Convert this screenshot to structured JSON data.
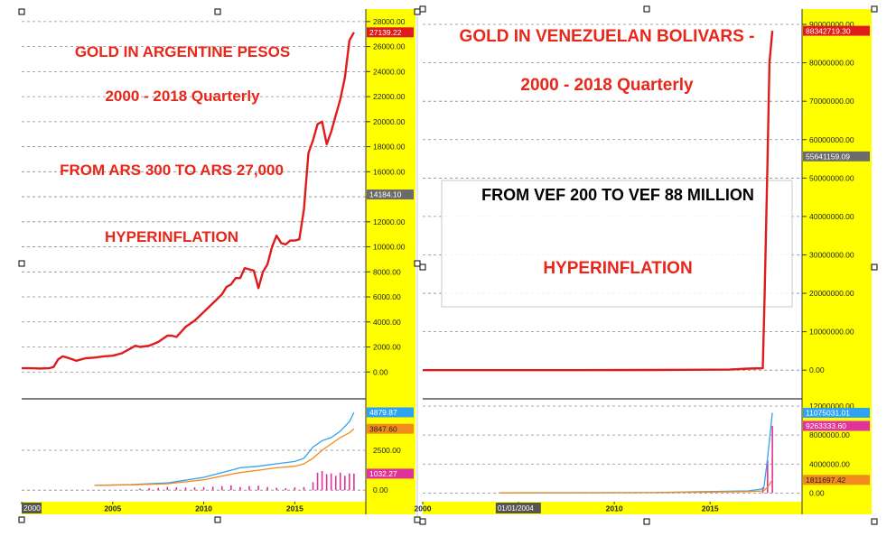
{
  "colors": {
    "axis_bg": "#ffff00",
    "headline": "#e8261a",
    "note": "#000000",
    "price_line": "#e01b1b",
    "blue_line": "#2ea3f2",
    "orange_line": "#f28a1c",
    "volume": "#e0339a",
    "price_tag": "#e01b1b",
    "mid_tag": "#6b6b6b",
    "blue_tag": "#2ea3f2",
    "orange_tag": "#f28a1c",
    "volume_tag": "#e0339a"
  },
  "chart_data": [
    {
      "type": "line",
      "panel": "argentina",
      "annotations": [
        "GOLD IN ARGENTINE PESOS",
        "2000 - 2018 Quarterly",
        "FROM ARS 300 TO ARS 27,000",
        "HYPERINFLATION"
      ],
      "xlim": [
        2000,
        2018.9
      ],
      "ylim": [
        -2000,
        29000
      ],
      "x_ticks": [
        2000,
        2005,
        2010,
        2015
      ],
      "x_tick_labels": [
        "2000",
        "2005",
        "2010",
        "2015"
      ],
      "y_ticks": [
        0,
        2000,
        4000,
        6000,
        8000,
        10000,
        12000,
        14000,
        16000,
        18000,
        20000,
        22000,
        24000,
        26000,
        28000
      ],
      "y_tick_labels": [
        "0.00",
        "2000.00",
        "4000.00",
        "6000.00",
        "8000.00",
        "10000.00",
        "12000.00",
        "14000.00",
        "16000.00",
        "18000.00",
        "20000.00",
        "22000.00",
        "24000.00",
        "26000.00",
        "28000.00"
      ],
      "value_tags": [
        {
          "value": 27139.22,
          "label": "27139.22",
          "role": "price"
        },
        {
          "value": 14184.1,
          "label": "14184.10",
          "role": "mid"
        }
      ],
      "x": [
        2000.0,
        2000.5,
        2001.0,
        2001.5,
        2001.75,
        2002.0,
        2002.25,
        2002.5,
        2003.0,
        2003.5,
        2004.0,
        2004.5,
        2005.0,
        2005.5,
        2006.0,
        2006.25,
        2006.5,
        2007.0,
        2007.5,
        2008.0,
        2008.25,
        2008.5,
        2008.75,
        2009.0,
        2009.5,
        2010.0,
        2010.5,
        2011.0,
        2011.25,
        2011.5,
        2011.75,
        2012.0,
        2012.25,
        2012.5,
        2012.75,
        2013.0,
        2013.25,
        2013.5,
        2013.75,
        2014.0,
        2014.25,
        2014.5,
        2014.75,
        2015.0,
        2015.25,
        2015.5,
        2015.75,
        2016.0,
        2016.25,
        2016.5,
        2016.75,
        2017.0,
        2017.25,
        2017.5,
        2017.75,
        2018.0,
        2018.25
      ],
      "y": [
        300,
        300,
        280,
        300,
        400,
        1000,
        1250,
        1150,
        900,
        1100,
        1150,
        1250,
        1300,
        1500,
        1900,
        2100,
        2000,
        2100,
        2400,
        2900,
        2900,
        2800,
        3200,
        3600,
        4100,
        4800,
        5500,
        6200,
        6800,
        7000,
        7500,
        7500,
        8300,
        8200,
        8100,
        6700,
        8000,
        8600,
        10000,
        10900,
        10300,
        10200,
        10500,
        10500,
        10600,
        13000,
        17500,
        18500,
        19800,
        20000,
        18200,
        19200,
        20500,
        21800,
        23500,
        26500,
        27139
      ],
      "lower": {
        "ylim": [
          -500,
          5500
        ],
        "y_ticks": [
          0,
          2500
        ],
        "y_tick_labels": [
          "0.00",
          "2500.00"
        ],
        "value_tags": [
          {
            "value": 4879.87,
            "label": "4879.87",
            "role": "blue"
          },
          {
            "value": 3847.6,
            "label": "3847.60",
            "role": "orange"
          },
          {
            "value": 1032.27,
            "label": "1032.27",
            "role": "volume"
          }
        ],
        "blue": {
          "x": [
            2004.0,
            2006.0,
            2008.0,
            2010.0,
            2011.5,
            2012.0,
            2013.0,
            2014.0,
            2015.0,
            2015.5,
            2016.0,
            2016.5,
            2017.0,
            2017.5,
            2018.0,
            2018.25
          ],
          "y": [
            300,
            350,
            450,
            800,
            1250,
            1400,
            1500,
            1650,
            1800,
            2000,
            2700,
            3100,
            3300,
            3700,
            4300,
            4879
          ]
        },
        "orange": {
          "x": [
            2004.0,
            2006.0,
            2008.0,
            2010.0,
            2011.5,
            2012.0,
            2013.0,
            2014.0,
            2015.0,
            2015.5,
            2016.0,
            2016.5,
            2017.0,
            2017.5,
            2018.0,
            2018.25
          ],
          "y": [
            300,
            330,
            400,
            650,
            1000,
            1100,
            1250,
            1400,
            1500,
            1650,
            2000,
            2500,
            2900,
            3300,
            3600,
            3847
          ]
        },
        "volume": {
          "x": [
            2006.5,
            2007.0,
            2007.5,
            2008.0,
            2008.5,
            2009.0,
            2009.5,
            2010.0,
            2010.5,
            2011.0,
            2011.5,
            2012.0,
            2012.5,
            2013.0,
            2013.5,
            2014.0,
            2014.5,
            2015.0,
            2015.5,
            2016.0,
            2016.25,
            2016.5,
            2016.75,
            2017.0,
            2017.25,
            2017.5,
            2017.75,
            2018.0,
            2018.25
          ],
          "y": [
            100,
            120,
            150,
            200,
            180,
            170,
            180,
            200,
            220,
            250,
            300,
            200,
            250,
            280,
            200,
            150,
            120,
            180,
            200,
            500,
            1100,
            1200,
            1000,
            1050,
            900,
            1100,
            900,
            1050,
            1032
          ]
        }
      }
    },
    {
      "type": "line",
      "panel": "venezuela",
      "annotations": [
        "GOLD IN VENEZUELAN BOLIVARS -",
        "2000  - 2018  Quarterly",
        "FROM VEF 200 TO VEF 88 MILLION",
        "HYPERINFLATION"
      ],
      "xlim": [
        2000,
        2019.8
      ],
      "ylim": [
        -7000000,
        94000000
      ],
      "x_ticks": [
        2000,
        2005,
        2010,
        2015
      ],
      "x_tick_labels": [
        "2000",
        "2005",
        "2010",
        "2015"
      ],
      "x_cursor_label": "01/01/2004",
      "y_ticks": [
        0,
        10000000,
        20000000,
        30000000,
        40000000,
        50000000,
        60000000,
        70000000,
        80000000,
        90000000
      ],
      "y_tick_labels": [
        "0.00",
        "10000000.00",
        "20000000.00",
        "30000000.00",
        "40000000.00",
        "50000000.00",
        "60000000.00",
        "70000000.00",
        "80000000.00",
        "90000000.00"
      ],
      "value_tags": [
        {
          "value": 88342719.3,
          "label": "88342719.30",
          "role": "price"
        },
        {
          "value": 55641159.09,
          "label": "55641159.09",
          "role": "mid"
        }
      ],
      "x": [
        2000.0,
        2004.0,
        2008.0,
        2012.0,
        2016.0,
        2017.0,
        2017.75,
        2017.85,
        2018.0,
        2018.1,
        2018.25
      ],
      "y": [
        200,
        2000,
        8000,
        40000,
        150000,
        400000,
        500000,
        20000000,
        55000000,
        80000000,
        88342719
      ],
      "lower": {
        "ylim": [
          -700000,
          12500000
        ],
        "y_ticks": [
          0,
          4000000,
          8000000,
          12000000
        ],
        "y_tick_labels": [
          "0.00",
          "4000000.00",
          "8000000.00",
          "12000000.00"
        ],
        "value_tags": [
          {
            "value": 11075031.01,
            "label": "11075031.01",
            "role": "blue"
          },
          {
            "value": 9263333.6,
            "label": "9263333.60",
            "role": "volume"
          },
          {
            "value": 1811697.42,
            "label": "1811697.42",
            "role": "orange"
          }
        ],
        "blue": {
          "x": [
            2004.0,
            2012.0,
            2017.0,
            2017.8,
            2018.0,
            2018.25
          ],
          "y": [
            20000,
            60000,
            300000,
            600000,
            4800000,
            11075031
          ]
        },
        "orange": {
          "x": [
            2004.0,
            2012.0,
            2017.0,
            2017.8,
            2018.0,
            2018.25
          ],
          "y": [
            20000,
            50000,
            200000,
            300000,
            800000,
            1811697
          ]
        },
        "volume": {
          "x": [
            2017.75,
            2018.0,
            2018.25
          ],
          "y": [
            800000,
            4500000,
            9263333
          ]
        }
      }
    }
  ]
}
